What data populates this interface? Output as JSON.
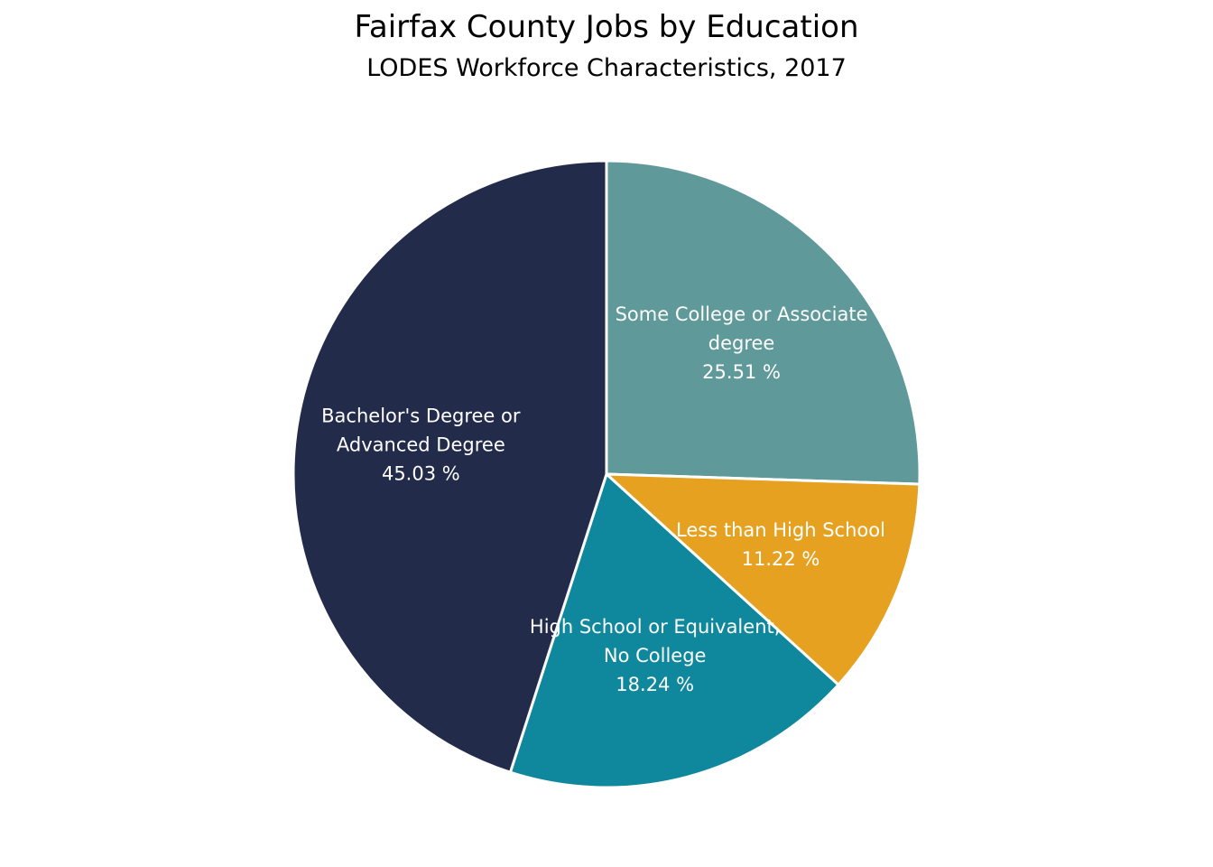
{
  "chart_data": {
    "type": "pie",
    "title": "Fairfax County Jobs by Education",
    "subtitle": "LODES Workforce Characteristics, 2017",
    "slices": [
      {
        "label_lines": [
          "Some College or Associate",
          "degree"
        ],
        "value": 25.51,
        "value_text": "25.51 %",
        "color": "#5f9999"
      },
      {
        "label_lines": [
          "Less than High School"
        ],
        "value": 11.22,
        "value_text": "11.22 %",
        "color": "#e5a11f"
      },
      {
        "label_lines": [
          "High School or Equivalent,",
          "No College"
        ],
        "value": 18.24,
        "value_text": "18.24 %",
        "color": "#0f889d"
      },
      {
        "label_lines": [
          "Bachelor's Degree or",
          "Advanced Degree"
        ],
        "value": 45.03,
        "value_text": "45.03 %",
        "color": "#232b4a"
      }
    ],
    "start_angle": "12 o'clock",
    "direction": "clockwise",
    "legend": "none"
  }
}
